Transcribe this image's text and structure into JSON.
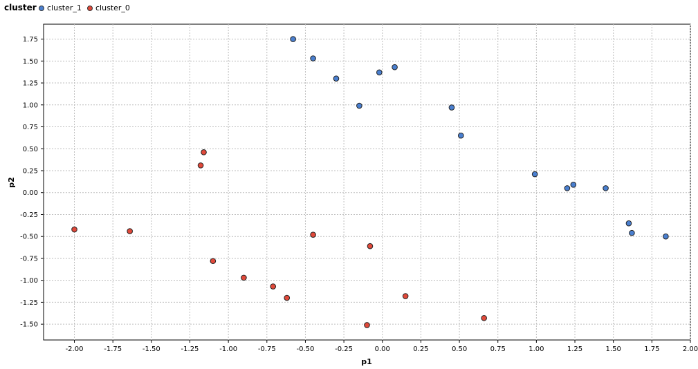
{
  "legend": {
    "title": "cluster",
    "items": [
      {
        "label": "cluster_1",
        "color": "#4a7fcf"
      },
      {
        "label": "cluster_0",
        "color": "#e0493a"
      }
    ]
  },
  "chart_data": {
    "type": "scatter",
    "title": "",
    "xlabel": "p1",
    "ylabel": "p2",
    "xlim": [
      -2.2,
      2.0
    ],
    "ylim": [
      -1.68,
      1.92
    ],
    "xticks": [
      -2.0,
      -1.75,
      -1.5,
      -1.25,
      -1.0,
      -0.75,
      -0.5,
      -0.25,
      0.0,
      0.25,
      0.5,
      0.75,
      1.0,
      1.25,
      1.5,
      1.75,
      2.0
    ],
    "xtick_labels": [
      "-2.00",
      "-1.75",
      "-1.50",
      "-1.25",
      "-1.00",
      "-0.75",
      "-0.50",
      "-0.25",
      "0.00",
      "0.25",
      "0.50",
      "0.75",
      "1.00",
      "1.25",
      "1.50",
      "1.75",
      "2.00"
    ],
    "yticks": [
      1.75,
      1.5,
      1.25,
      1.0,
      0.75,
      0.5,
      0.25,
      0.0,
      -0.25,
      -0.5,
      -0.75,
      -1.0,
      -1.25,
      -1.5
    ],
    "ytick_labels": [
      "1.75",
      "1.50",
      "1.25",
      "1.00",
      "0.75",
      "0.50",
      "0.25",
      "0.00",
      "-0.25",
      "-0.50",
      "-0.75",
      "-1.00",
      "-1.25",
      "-1.50"
    ],
    "grid": true,
    "legend_position": "top-left",
    "series": [
      {
        "name": "cluster_1",
        "color": "#4a7fcf",
        "points": [
          {
            "x": -0.58,
            "y": 1.75
          },
          {
            "x": -0.45,
            "y": 1.53
          },
          {
            "x": -0.3,
            "y": 1.3
          },
          {
            "x": -0.02,
            "y": 1.37
          },
          {
            "x": 0.08,
            "y": 1.43
          },
          {
            "x": -0.15,
            "y": 0.99
          },
          {
            "x": 0.45,
            "y": 0.97
          },
          {
            "x": 0.51,
            "y": 0.65
          },
          {
            "x": 0.99,
            "y": 0.21
          },
          {
            "x": 1.2,
            "y": 0.05
          },
          {
            "x": 1.24,
            "y": 0.09
          },
          {
            "x": 1.45,
            "y": 0.05
          },
          {
            "x": 1.6,
            "y": -0.35
          },
          {
            "x": 1.62,
            "y": -0.46
          },
          {
            "x": 1.84,
            "y": -0.5
          }
        ]
      },
      {
        "name": "cluster_0",
        "color": "#e0493a",
        "points": [
          {
            "x": -2.0,
            "y": -0.42
          },
          {
            "x": -1.64,
            "y": -0.44
          },
          {
            "x": -1.16,
            "y": 0.46
          },
          {
            "x": -1.18,
            "y": 0.31
          },
          {
            "x": -1.1,
            "y": -0.78
          },
          {
            "x": -0.9,
            "y": -0.97
          },
          {
            "x": -0.71,
            "y": -1.07
          },
          {
            "x": -0.62,
            "y": -1.2
          },
          {
            "x": -0.45,
            "y": -0.48
          },
          {
            "x": -0.08,
            "y": -0.61
          },
          {
            "x": 0.15,
            "y": -1.18
          },
          {
            "x": -0.1,
            "y": -1.51
          },
          {
            "x": 0.66,
            "y": -1.43
          }
        ]
      }
    ]
  }
}
